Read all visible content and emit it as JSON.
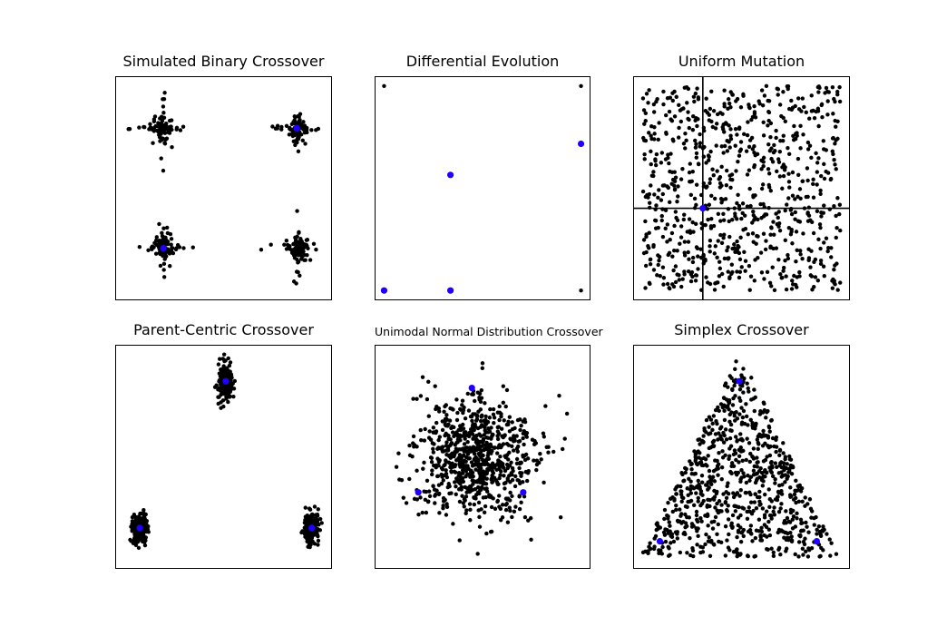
{
  "chart_data": [
    {
      "type": "scatter",
      "title": "Simulated Binary Crossover",
      "xlabel": "",
      "ylabel": "",
      "xlim": [
        0,
        1
      ],
      "ylim": [
        0,
        1
      ],
      "grid": false,
      "parents": [
        {
          "x": 0.84,
          "y": 0.77
        },
        {
          "x": 0.22,
          "y": 0.23
        }
      ],
      "offspring_clusters": [
        {
          "center": {
            "x": 0.22,
            "y": 0.77
          },
          "n": 90,
          "spread": 0.025,
          "arms": 0.07
        },
        {
          "center": {
            "x": 0.84,
            "y": 0.77
          },
          "n": 90,
          "spread": 0.025,
          "arms": 0.07
        },
        {
          "center": {
            "x": 0.22,
            "y": 0.23
          },
          "n": 90,
          "spread": 0.025,
          "arms": 0.07
        },
        {
          "center": {
            "x": 0.84,
            "y": 0.23
          },
          "n": 90,
          "spread": 0.025,
          "arms": 0.07
        }
      ],
      "colors": {
        "offspring": "#000000",
        "parents": "#1f00ff"
      }
    },
    {
      "type": "scatter",
      "title": "Differential Evolution",
      "xlabel": "",
      "ylabel": "",
      "xlim": [
        0,
        1
      ],
      "ylim": [
        0,
        1
      ],
      "grid": false,
      "parents": [
        {
          "x": 0.04,
          "y": 0.04
        },
        {
          "x": 0.35,
          "y": 0.04
        },
        {
          "x": 0.35,
          "y": 0.56
        },
        {
          "x": 0.96,
          "y": 0.7
        }
      ],
      "offspring": [
        {
          "x": 0.04,
          "y": 0.96
        },
        {
          "x": 0.96,
          "y": 0.96
        },
        {
          "x": 0.96,
          "y": 0.04
        }
      ],
      "colors": {
        "offspring": "#000000",
        "parents": "#1f00ff"
      }
    },
    {
      "type": "scatter",
      "title": "Uniform Mutation",
      "xlabel": "",
      "ylabel": "",
      "xlim": [
        0,
        1
      ],
      "ylim": [
        0,
        1
      ],
      "grid": false,
      "reference_lines": {
        "x": 0.32,
        "y": 0.41
      },
      "parents": [
        {
          "x": 0.32,
          "y": 0.41
        }
      ],
      "offspring_uniform": {
        "n": 800,
        "xrange": [
          0.04,
          0.96
        ],
        "yrange": [
          0.04,
          0.96
        ]
      },
      "colors": {
        "offspring": "#000000",
        "parents": "#1f00ff",
        "lines": "#000000"
      }
    },
    {
      "type": "scatter",
      "title": "Parent-Centric Crossover",
      "xlabel": "",
      "ylabel": "",
      "xlim": [
        0,
        1
      ],
      "ylim": [
        0,
        1
      ],
      "grid": false,
      "parents": [
        {
          "x": 0.51,
          "y": 0.84
        },
        {
          "x": 0.11,
          "y": 0.18
        },
        {
          "x": 0.91,
          "y": 0.18
        }
      ],
      "offspring_clusters": [
        {
          "center": {
            "x": 0.51,
            "y": 0.84
          },
          "n": 180,
          "sx": 0.017,
          "sy": 0.045
        },
        {
          "center": {
            "x": 0.11,
            "y": 0.18
          },
          "n": 180,
          "sx": 0.017,
          "sy": 0.035
        },
        {
          "center": {
            "x": 0.91,
            "y": 0.18
          },
          "n": 180,
          "sx": 0.017,
          "sy": 0.035
        }
      ],
      "colors": {
        "offspring": "#000000",
        "parents": "#1f00ff"
      }
    },
    {
      "type": "scatter",
      "title": "Unimodal Normal Distribution Crossover",
      "xlabel": "",
      "ylabel": "",
      "xlim": [
        0,
        1
      ],
      "ylim": [
        0,
        1
      ],
      "grid": false,
      "parents": [
        {
          "x": 0.45,
          "y": 0.81
        },
        {
          "x": 0.2,
          "y": 0.34
        },
        {
          "x": 0.69,
          "y": 0.34
        }
      ],
      "offspring_gaussian": {
        "n": 800,
        "center": {
          "x": 0.47,
          "y": 0.5
        },
        "sx": 0.14,
        "sy": 0.14
      },
      "colors": {
        "offspring": "#000000",
        "parents": "#1f00ff"
      }
    },
    {
      "type": "scatter",
      "title": "Simplex Crossover",
      "xlabel": "",
      "ylabel": "",
      "xlim": [
        0,
        1
      ],
      "ylim": [
        0,
        1
      ],
      "grid": false,
      "parents": [
        {
          "x": 0.49,
          "y": 0.84
        },
        {
          "x": 0.12,
          "y": 0.12
        },
        {
          "x": 0.85,
          "y": 0.12
        }
      ],
      "offspring_simplex": {
        "n": 800,
        "vertices": [
          {
            "x": 0.49,
            "y": 0.97
          },
          {
            "x": 0.03,
            "y": 0.05
          },
          {
            "x": 0.95,
            "y": 0.05
          }
        ]
      },
      "colors": {
        "offspring": "#000000",
        "parents": "#1f00ff"
      }
    }
  ]
}
